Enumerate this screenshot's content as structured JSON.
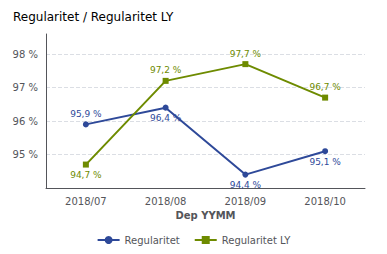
{
  "chart_data": {
    "type": "line",
    "title": "Regularitet / Regularitet LY",
    "x_label": "Dep YYMM",
    "categories": [
      "2018/07",
      "2018/08",
      "2018/09",
      "2018/10"
    ],
    "series": [
      {
        "name": "Regularitet",
        "color": "#2E4999",
        "marker": "circle",
        "values": [
          95.9,
          96.4,
          94.4,
          95.1
        ],
        "value_labels": [
          "95,9 %",
          "96,4 %",
          "94,4 %",
          "95,1 %"
        ]
      },
      {
        "name": "Regularitet LY",
        "color": "#6E8B00",
        "marker": "square",
        "values": [
          94.7,
          97.2,
          97.7,
          96.7
        ],
        "value_labels": [
          "94,7 %",
          "97,2 %",
          "97,7 %",
          "96,7 %"
        ]
      }
    ],
    "ylim": [
      94.0,
      98.6
    ],
    "yticks": [
      {
        "value": 95.0,
        "label": "95 %"
      },
      {
        "value": 96.0,
        "label": "96 %"
      },
      {
        "value": 97.0,
        "label": "97 %"
      },
      {
        "value": 98.0,
        "label": "98 %"
      }
    ],
    "grid": true,
    "legend": "bottom",
    "data_labels": true
  }
}
